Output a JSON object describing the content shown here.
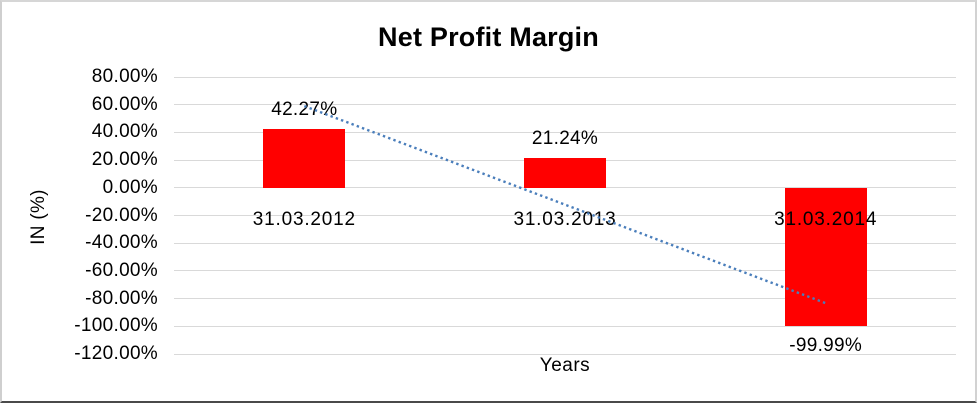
{
  "chart_data": {
    "type": "bar",
    "title": "Net Profit Margin",
    "xlabel": "Years",
    "ylabel": "IN (%)",
    "categories": [
      "31.03.2012",
      "31.03.2013",
      "31.03.2014"
    ],
    "values": [
      42.27,
      21.24,
      -99.99
    ],
    "data_labels": [
      "42.27%",
      "21.24%",
      "-99.99%"
    ],
    "bar_color": "#ff0000",
    "ylim": [
      -120,
      80
    ],
    "ytick_step": 20,
    "ytick_labels": [
      "80.00%",
      "60.00%",
      "40.00%",
      "20.00%",
      "0.00%",
      "-20.00%",
      "-40.00%",
      "-60.00%",
      "-80.00%",
      "-100.00%",
      "-120.00%"
    ],
    "ytick_values": [
      80,
      60,
      40,
      20,
      0,
      -20,
      -40,
      -60,
      -80,
      -100,
      -120
    ],
    "grid": true,
    "gridline_color": "#d9d9d9",
    "legend": "none",
    "trendline": {
      "type": "linear",
      "style": "dotted",
      "color": "#4a7ebb",
      "endpoint_values": [
        59.0,
        -83.3
      ]
    }
  }
}
